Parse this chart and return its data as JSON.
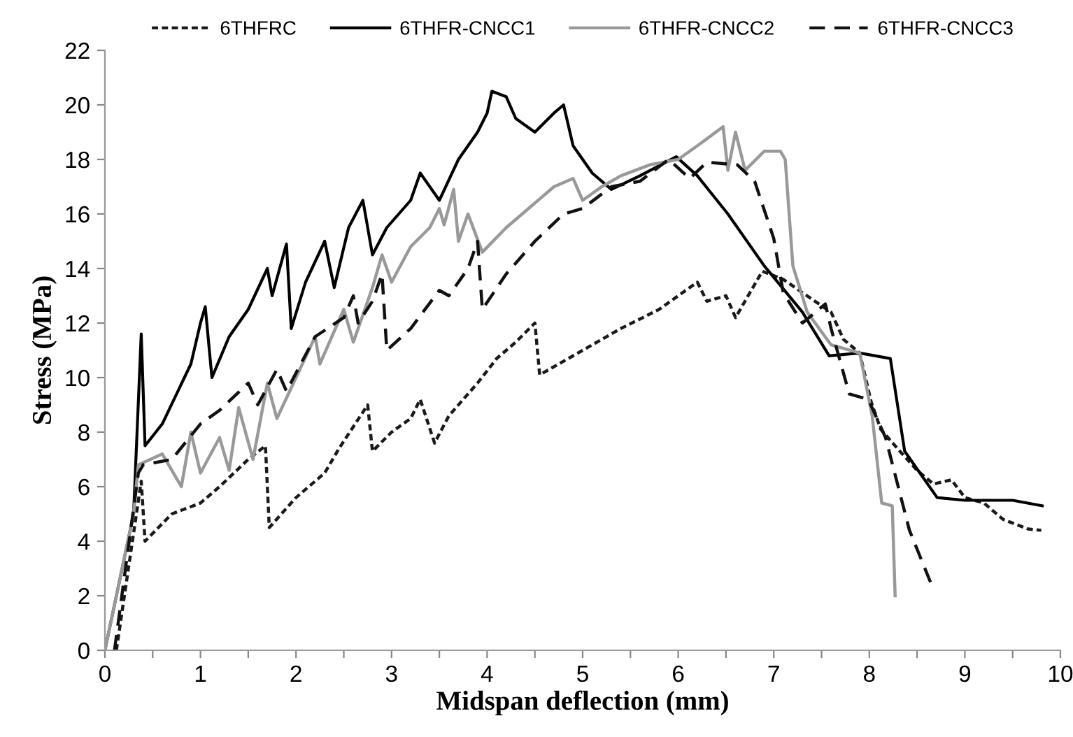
{
  "chart_data": {
    "type": "line",
    "xlabel": "Midspan deflection (mm)",
    "ylabel": "Stress (MPa)",
    "xlim": [
      0,
      10
    ],
    "ylim": [
      0,
      22
    ],
    "xticks": [
      0,
      {
        "value": 0.5,
        "label": null
      },
      1,
      {
        "value": 1.5,
        "label": null
      },
      2,
      {
        "value": 2.5,
        "label": null
      },
      3,
      {
        "value": 3.5,
        "label": null
      },
      4,
      {
        "value": 4.5,
        "label": null
      },
      5,
      {
        "value": 5.5,
        "label": null
      },
      6,
      {
        "value": 6.5,
        "label": null
      },
      7,
      {
        "value": 7.5,
        "label": null
      },
      8,
      {
        "value": 8.5,
        "label": null
      },
      9,
      {
        "value": 9.5,
        "label": null
      },
      10
    ],
    "yticks": [
      0,
      2,
      4,
      6,
      8,
      10,
      12,
      14,
      16,
      18,
      20,
      22
    ],
    "grid": false,
    "legend": "top",
    "marker": "none",
    "series": [
      {
        "name": "6THFRC",
        "color": "#1a1a1a",
        "line_style": "dotted",
        "x": [
          0.12,
          0.38,
          0.42,
          0.7,
          1.0,
          1.2,
          1.5,
          1.68,
          1.72,
          2.0,
          2.3,
          2.45,
          2.6,
          2.75,
          2.8,
          3.0,
          3.2,
          3.3,
          3.45,
          3.6,
          3.9,
          4.1,
          4.3,
          4.5,
          4.55,
          4.8,
          5.0,
          5.4,
          5.8,
          6.2,
          6.3,
          6.5,
          6.6,
          6.88,
          7.1,
          7.39,
          7.6,
          7.73,
          7.9,
          8.02,
          8.12,
          8.32,
          8.5,
          8.67,
          8.86,
          9.0,
          9.2,
          9.4,
          9.66,
          9.8
        ],
        "values": [
          0,
          6.2,
          4.0,
          5.0,
          5.4,
          6.0,
          7.0,
          7.5,
          4.5,
          5.6,
          6.5,
          7.4,
          8.2,
          9.0,
          7.3,
          8.0,
          8.5,
          9.2,
          7.6,
          8.6,
          9.8,
          10.7,
          11.3,
          12.0,
          10.1,
          10.6,
          11.0,
          11.8,
          12.5,
          13.5,
          12.8,
          13.0,
          12.2,
          13.9,
          13.6,
          12.9,
          12.4,
          11.4,
          10.9,
          9.1,
          8.1,
          7.3,
          6.6,
          6.1,
          6.25,
          5.6,
          5.4,
          4.8,
          4.45,
          4.4
        ]
      },
      {
        "name": "6THFR-CNCC1",
        "color": "#000000",
        "line_style": "solid",
        "x": [
          0,
          0.3,
          0.38,
          0.42,
          0.6,
          0.9,
          1.0,
          1.05,
          1.12,
          1.3,
          1.5,
          1.7,
          1.75,
          1.9,
          1.95,
          2.1,
          2.3,
          2.4,
          2.55,
          2.7,
          2.8,
          2.95,
          3.2,
          3.3,
          3.5,
          3.7,
          3.9,
          4.0,
          4.05,
          4.2,
          4.3,
          4.5,
          4.7,
          4.8,
          4.9,
          5.1,
          5.3,
          5.6,
          5.98,
          6.2,
          6.52,
          6.9,
          7.3,
          7.58,
          7.9,
          8.22,
          8.37,
          8.71,
          9.0,
          9.5,
          9.81
        ],
        "values": [
          0,
          5,
          11.6,
          7.5,
          8.3,
          10.5,
          12.0,
          12.6,
          10.0,
          11.5,
          12.5,
          14.0,
          13.0,
          14.9,
          11.8,
          13.5,
          15.0,
          13.3,
          15.5,
          16.5,
          14.5,
          15.5,
          16.5,
          17.5,
          16.5,
          18.0,
          19.0,
          19.7,
          20.5,
          20.3,
          19.5,
          19.0,
          19.7,
          20.0,
          18.5,
          17.5,
          16.9,
          17.4,
          18.1,
          17.4,
          16.0,
          14.1,
          12.4,
          10.8,
          10.9,
          10.7,
          7.3,
          5.6,
          5.5,
          5.5,
          5.3
        ]
      },
      {
        "name": "6THFR-CNCC2",
        "color": "#999999",
        "line_style": "solid",
        "x": [
          0,
          0.3,
          0.35,
          0.6,
          0.8,
          0.9,
          1.0,
          1.2,
          1.3,
          1.4,
          1.55,
          1.7,
          1.8,
          2.0,
          2.2,
          2.25,
          2.5,
          2.6,
          2.8,
          2.9,
          3.0,
          3.2,
          3.4,
          3.5,
          3.55,
          3.65,
          3.7,
          3.8,
          3.95,
          4.2,
          4.5,
          4.7,
          4.9,
          5.0,
          5.2,
          5.4,
          5.7,
          6.0,
          6.2,
          6.47,
          6.52,
          6.6,
          6.7,
          6.9,
          7.07,
          7.12,
          7.2,
          7.35,
          7.6,
          7.9,
          8.03,
          8.13,
          8.24,
          8.27
        ],
        "values": [
          0,
          5,
          6.8,
          7.2,
          6.0,
          8.0,
          6.5,
          7.8,
          6.6,
          8.9,
          7.0,
          9.8,
          8.5,
          10.0,
          11.5,
          10.5,
          12.5,
          11.3,
          13.3,
          14.5,
          13.5,
          14.8,
          15.5,
          16.2,
          15.6,
          16.9,
          15.0,
          16.0,
          14.6,
          15.5,
          16.4,
          17.0,
          17.3,
          16.5,
          17.0,
          17.4,
          17.8,
          18.0,
          18.5,
          19.2,
          17.6,
          19.0,
          17.6,
          18.3,
          18.3,
          18.0,
          14.1,
          12.4,
          11.2,
          10.9,
          8.6,
          5.4,
          5.3,
          2.0
        ]
      },
      {
        "name": "6THFR-CNCC3",
        "color": "#111111",
        "line_style": "dashed",
        "x": [
          0.1,
          0.35,
          0.4,
          0.7,
          1.0,
          1.2,
          1.5,
          1.6,
          1.8,
          1.9,
          2.2,
          2.5,
          2.6,
          2.65,
          2.8,
          2.9,
          2.95,
          3.2,
          3.5,
          3.6,
          3.8,
          3.9,
          3.95,
          4.2,
          4.5,
          4.8,
          5.0,
          5.3,
          5.6,
          5.9,
          6.12,
          6.3,
          6.62,
          6.8,
          7.0,
          7.1,
          7.3,
          7.54,
          7.6,
          7.79,
          7.99,
          8.17,
          8.42,
          8.64
        ],
        "values": [
          0,
          6.5,
          6.8,
          7.0,
          8.3,
          8.8,
          9.8,
          9.0,
          10.3,
          9.5,
          11.5,
          12.2,
          13.0,
          12.0,
          12.8,
          13.8,
          11.0,
          11.8,
          13.2,
          13.0,
          14.0,
          15.0,
          12.5,
          13.8,
          15.0,
          16.0,
          16.2,
          17.0,
          17.2,
          18.0,
          17.3,
          17.9,
          17.8,
          17.2,
          15.1,
          13.1,
          12.0,
          12.7,
          11.8,
          9.4,
          9.2,
          7.8,
          4.4,
          2.5
        ]
      }
    ]
  }
}
